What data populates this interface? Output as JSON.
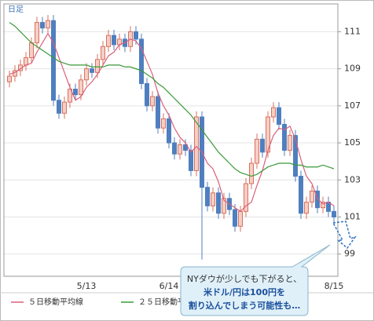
{
  "chart_data": {
    "type": "candlestick",
    "timeframe_label": "日足",
    "categories": [
      null,
      null,
      null,
      null,
      null,
      null,
      null,
      null,
      null,
      null,
      null,
      null,
      null,
      null,
      "5/13",
      null,
      null,
      null,
      null,
      null,
      null,
      null,
      null,
      null,
      null,
      null,
      null,
      null,
      null,
      "6/14",
      null,
      null,
      null,
      null,
      null,
      null,
      null,
      null,
      null,
      null,
      null,
      null,
      null,
      null,
      null,
      null,
      null,
      null,
      null,
      null,
      null,
      null,
      null,
      null,
      null,
      null,
      null,
      null,
      null,
      "8/15"
    ],
    "open": [
      108.3,
      108.6,
      108.9,
      109.2,
      109.6,
      110.4,
      111.5,
      111.2,
      111.6,
      107.3,
      106.6,
      107.2,
      107.9,
      107.6,
      108.4,
      109.0,
      108.8,
      109.5,
      110.2,
      110.8,
      110.3,
      110.6,
      110.2,
      111.0,
      110.6,
      108.2,
      107.0,
      107.5,
      105.8,
      106.3,
      105.0,
      104.4,
      104.9,
      104.6,
      103.5,
      106.4,
      102.6,
      101.6,
      102.3,
      101.2,
      102.0,
      101.4,
      100.5,
      101.3,
      102.8,
      103.9,
      105.2,
      104.5,
      106.4,
      106.9,
      106.0,
      104.6,
      105.4,
      103.2,
      101.2,
      101.8,
      102.4,
      101.5,
      101.8,
      101.3
    ],
    "high": [
      108.9,
      109.2,
      109.5,
      109.9,
      110.7,
      111.8,
      111.8,
      111.9,
      111.9,
      107.6,
      107.5,
      108.2,
      108.2,
      108.7,
      109.3,
      109.3,
      109.8,
      110.5,
      111.1,
      111.1,
      110.9,
      110.9,
      111.3,
      111.3,
      110.9,
      108.5,
      107.8,
      107.8,
      106.6,
      106.6,
      105.3,
      105.2,
      105.2,
      104.9,
      106.7,
      106.7,
      102.9,
      102.6,
      102.6,
      102.3,
      102.3,
      101.7,
      101.6,
      103.1,
      104.2,
      105.5,
      105.5,
      106.7,
      107.2,
      107.2,
      106.3,
      105.7,
      105.7,
      103.5,
      102.1,
      102.7,
      102.7,
      102.1,
      102.1,
      101.6
    ],
    "low": [
      108.0,
      108.3,
      108.6,
      108.9,
      109.3,
      110.1,
      110.9,
      110.9,
      107.0,
      106.3,
      106.3,
      106.9,
      107.3,
      107.3,
      108.1,
      108.5,
      108.5,
      109.2,
      109.9,
      110.0,
      110.0,
      109.9,
      109.9,
      110.3,
      107.9,
      106.7,
      106.7,
      105.5,
      105.5,
      104.7,
      104.1,
      104.1,
      104.3,
      103.2,
      103.2,
      98.7,
      101.3,
      101.3,
      100.9,
      100.9,
      101.1,
      100.2,
      100.2,
      101.0,
      102.5,
      103.6,
      104.2,
      104.2,
      106.1,
      105.7,
      104.3,
      104.3,
      102.9,
      100.9,
      100.9,
      101.5,
      101.2,
      101.2,
      101.0,
      100.7
    ],
    "close": [
      108.6,
      108.9,
      109.2,
      109.6,
      110.4,
      111.5,
      111.2,
      111.6,
      107.3,
      106.6,
      107.2,
      107.9,
      107.6,
      108.4,
      109.0,
      108.8,
      109.5,
      110.2,
      110.8,
      110.3,
      110.6,
      110.2,
      111.0,
      110.6,
      108.2,
      107.0,
      107.5,
      105.8,
      106.3,
      105.0,
      104.4,
      104.9,
      104.6,
      103.5,
      106.4,
      102.6,
      101.6,
      102.3,
      101.2,
      102.0,
      101.4,
      100.5,
      101.3,
      102.8,
      103.9,
      105.2,
      104.5,
      106.4,
      106.9,
      106.0,
      104.6,
      105.4,
      103.2,
      101.2,
      101.8,
      102.4,
      101.5,
      101.8,
      101.3,
      101.0
    ],
    "up_color": "#d9705f",
    "down_color": "#4f7fbf",
    "series": [
      {
        "name": "５日移動平均線",
        "color": "#d9607a",
        "values": [
          108.7,
          108.8,
          109.0,
          109.2,
          109.3,
          109.9,
          110.4,
          110.9,
          110.4,
          109.6,
          108.8,
          108.0,
          107.3,
          107.5,
          108.0,
          108.3,
          108.7,
          109.2,
          109.7,
          109.9,
          110.3,
          110.4,
          110.6,
          110.5,
          110.1,
          109.4,
          108.7,
          107.7,
          107.0,
          106.5,
          105.8,
          105.3,
          105.0,
          104.5,
          104.8,
          104.5,
          103.9,
          103.6,
          102.9,
          101.9,
          101.7,
          101.5,
          101.3,
          101.6,
          101.8,
          102.7,
          103.5,
          104.6,
          105.4,
          105.8,
          105.7,
          105.9,
          105.2,
          104.1,
          103.2,
          102.8,
          102.0,
          101.7,
          101.8,
          101.6
        ]
      },
      {
        "name": "２５日移動平均線",
        "color": "#3a9a3a",
        "values": [
          111.5,
          111.3,
          111.0,
          110.7,
          110.4,
          110.2,
          110.0,
          109.8,
          109.6,
          109.4,
          109.3,
          109.2,
          109.2,
          109.2,
          109.2,
          109.1,
          109.1,
          109.1,
          109.2,
          109.2,
          109.2,
          109.1,
          109.1,
          109.0,
          108.9,
          108.7,
          108.5,
          108.2,
          108.0,
          107.7,
          107.4,
          107.1,
          106.8,
          106.5,
          106.1,
          105.7,
          105.3,
          104.9,
          104.5,
          104.2,
          103.9,
          103.6,
          103.4,
          103.3,
          103.2,
          103.3,
          103.5,
          103.7,
          103.8,
          103.9,
          103.9,
          103.9,
          103.8,
          103.8,
          103.7,
          103.7,
          103.7,
          103.8,
          103.7,
          103.6
        ]
      }
    ],
    "ylim": [
      97.8,
      112.5
    ],
    "yticks": [
      99,
      101,
      103,
      105,
      107,
      109,
      111
    ],
    "grid": true,
    "annotation": [
      "NYダウが少しでも下がると、",
      "米ドル/円は100円を",
      "割り込んでしまう可能性も…"
    ]
  }
}
